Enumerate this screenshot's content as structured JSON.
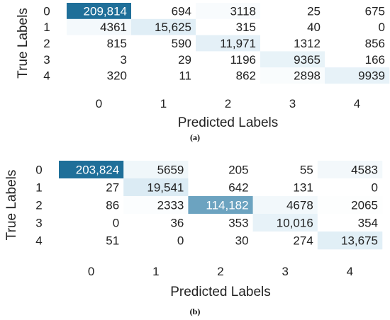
{
  "chart_data": [
    {
      "type": "heatmap",
      "caption": "(a)",
      "xlabel": "Predicted Labels",
      "ylabel": "True Labels",
      "x_ticks": [
        "0",
        "1",
        "2",
        "3",
        "4"
      ],
      "y_ticks": [
        "0",
        "1",
        "2",
        "3",
        "4"
      ],
      "values": [
        [
          209814,
          694,
          3118,
          25,
          675
        ],
        [
          4361,
          15625,
          315,
          40,
          0
        ],
        [
          815,
          590,
          11971,
          1312,
          856
        ],
        [
          3,
          29,
          1196,
          9365,
          166
        ],
        [
          320,
          11,
          862,
          2898,
          9939
        ]
      ],
      "value_labels": [
        [
          "209,814",
          "694",
          "3118",
          "25",
          "675"
        ],
        [
          "4361",
          "15,625",
          "315",
          "40",
          "0"
        ],
        [
          "815",
          "590",
          "11,971",
          "1312",
          "856"
        ],
        [
          "3",
          "29",
          "1196",
          "9365",
          "166"
        ],
        [
          "320",
          "11",
          "862",
          "2898",
          "9939"
        ]
      ],
      "colormap": "blues",
      "colors": {
        "low": "#ffffff",
        "high": "#1f6f99",
        "text_dark": "#222222",
        "text_light": "#ffffff"
      }
    },
    {
      "type": "heatmap",
      "caption": "(b)",
      "xlabel": "Predicted Labels",
      "ylabel": "True Labels",
      "x_ticks": [
        "0",
        "1",
        "2",
        "3",
        "4"
      ],
      "y_ticks": [
        "0",
        "1",
        "2",
        "3",
        "4"
      ],
      "values": [
        [
          203824,
          5659,
          205,
          55,
          4583
        ],
        [
          27,
          19541,
          642,
          131,
          0
        ],
        [
          86,
          2333,
          114182,
          4678,
          2065
        ],
        [
          0,
          36,
          353,
          10016,
          354
        ],
        [
          51,
          0,
          30,
          274,
          13675
        ]
      ],
      "value_labels": [
        [
          "203,824",
          "5659",
          "205",
          "55",
          "4583"
        ],
        [
          "27",
          "19,541",
          "642",
          "131",
          "0"
        ],
        [
          "86",
          "2333",
          "114,182",
          "4678",
          "2065"
        ],
        [
          "0",
          "36",
          "353",
          "10,016",
          "354"
        ],
        [
          "51",
          "0",
          "30",
          "274",
          "13,675"
        ]
      ],
      "colormap": "blues",
      "colors": {
        "low": "#ffffff",
        "high": "#1f6f99",
        "text_dark": "#222222",
        "text_light": "#ffffff"
      }
    }
  ]
}
